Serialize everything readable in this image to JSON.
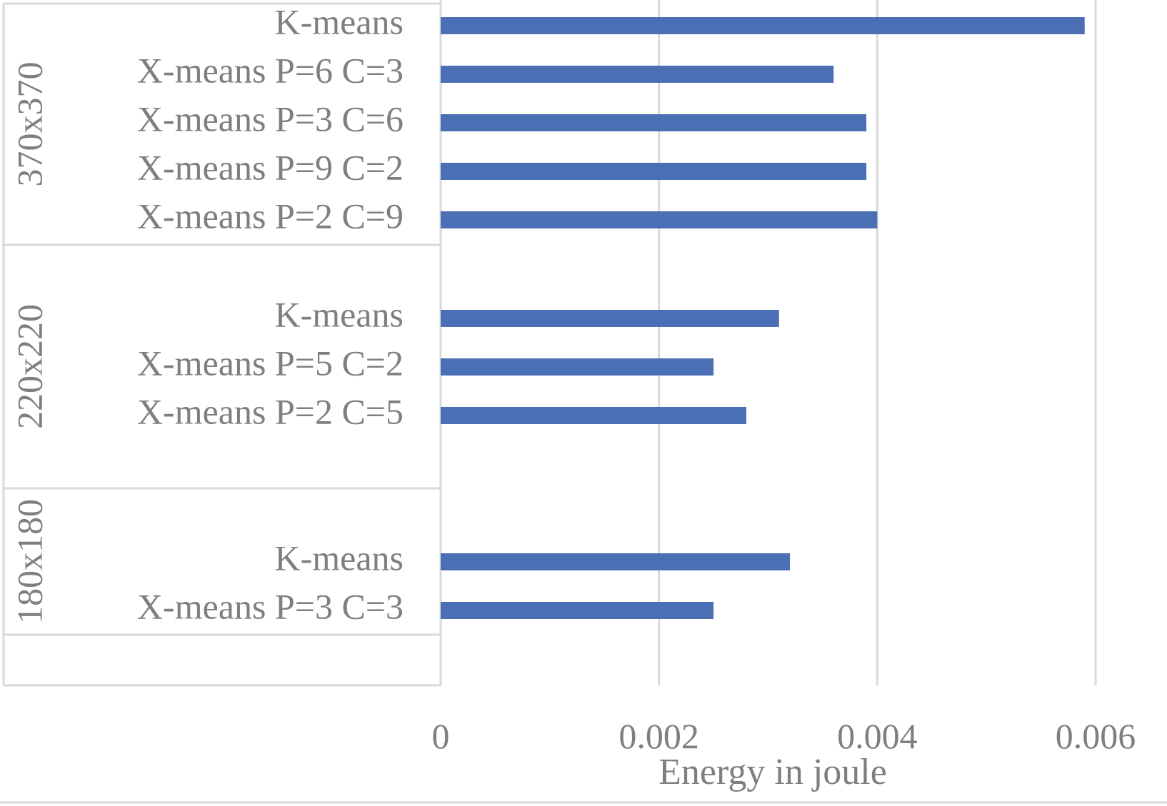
{
  "chart_data": {
    "type": "bar",
    "orientation": "horizontal",
    "title": "",
    "xlabel": "Energy in joule",
    "ylabel": "",
    "xlim": [
      0,
      0.006
    ],
    "x_ticks": [
      "0",
      "0.002",
      "0.004",
      "0.006"
    ],
    "grid": "vertical",
    "legend": "none",
    "bar_color": "#4a6fb5",
    "groups": [
      {
        "name": "370x370",
        "items": [
          {
            "label": "K-means",
            "value": 0.0059
          },
          {
            "label": "X-means P=6 C=3",
            "value": 0.0036
          },
          {
            "label": "X-means P=3 C=6",
            "value": 0.0039
          },
          {
            "label": "X-means P=9 C=2",
            "value": 0.0039
          },
          {
            "label": "X-means P=2 C=9",
            "value": 0.004
          }
        ]
      },
      {
        "name": "220x220",
        "items": [
          {
            "label": "K-means",
            "value": 0.0031
          },
          {
            "label": "X-means P=5 C=2",
            "value": 0.0025
          },
          {
            "label": "X-means P=2 C=5",
            "value": 0.0028
          }
        ]
      },
      {
        "name": "180x180",
        "items": [
          {
            "label": "K-means",
            "value": 0.0032
          },
          {
            "label": "X-means P=3 C=3",
            "value": 0.0025
          }
        ]
      }
    ]
  }
}
